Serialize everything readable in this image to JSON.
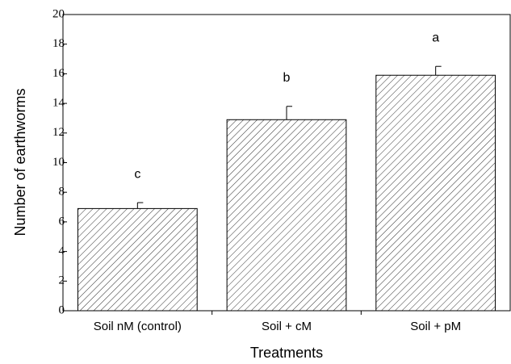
{
  "chart_data": {
    "type": "bar",
    "xlabel": "Treatments",
    "ylabel": "Number of earthworms",
    "categories": [
      "Soil nM (control)",
      "Soil + cM",
      "Soil + pM"
    ],
    "values": [
      6.9,
      12.9,
      15.9
    ],
    "errors": [
      0.4,
      0.9,
      0.6
    ],
    "annotations": [
      "c",
      "b",
      "a"
    ],
    "color": "#000000",
    "ylim": [
      0,
      20
    ],
    "yticks": [
      0,
      2,
      4,
      6,
      8,
      10,
      12,
      14,
      16,
      18,
      20
    ],
    "grid": false
  }
}
